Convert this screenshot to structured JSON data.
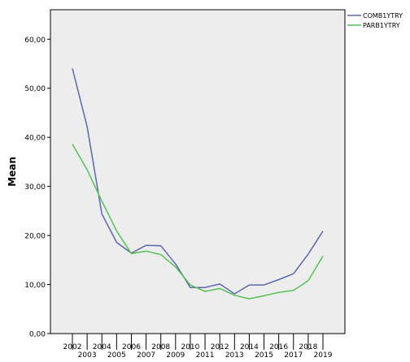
{
  "chart_data": {
    "type": "line",
    "title": "",
    "xlabel": "",
    "ylabel": "Mean",
    "ylim": [
      0,
      66
    ],
    "yticks": [
      0,
      10,
      20,
      30,
      40,
      50,
      60
    ],
    "ytick_labels": [
      "0,00",
      "10,00",
      "20,00",
      "30,00",
      "40,00",
      "50,00",
      "60,00"
    ],
    "categories": [
      "2002",
      "2003",
      "2004",
      "2005",
      "2006",
      "2007",
      "2008",
      "2009",
      "2010",
      "2011",
      "2012",
      "2013",
      "2014",
      "2015",
      "2016",
      "2017",
      "2018",
      "2019"
    ],
    "grid": false,
    "legend_position": "top-right",
    "series": [
      {
        "name": "COMB1YTRY",
        "color": "#5b67b3",
        "values": [
          54.0,
          42.2,
          24.4,
          18.6,
          16.4,
          18.0,
          17.9,
          14.2,
          9.4,
          9.4,
          10.1,
          8.1,
          9.9,
          9.9,
          11.0,
          12.2,
          16.2,
          20.9
        ]
      },
      {
        "name": "PARB1YTRY",
        "color": "#55c155",
        "values": [
          38.6,
          33.4,
          27.0,
          20.9,
          16.3,
          16.8,
          16.1,
          13.6,
          9.9,
          8.6,
          9.2,
          7.8,
          7.1,
          7.7,
          8.4,
          8.8,
          10.8,
          15.8
        ]
      }
    ]
  }
}
